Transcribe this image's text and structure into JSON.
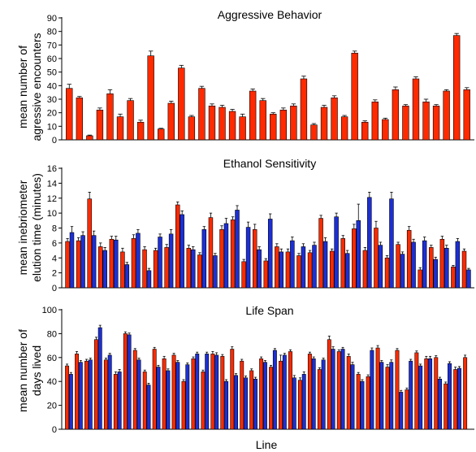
{
  "chart_data": [
    {
      "type": "bar",
      "title": "Aggressive Behavior",
      "ylabel": [
        "mean number of",
        "agressive encounters"
      ],
      "ylim": [
        0,
        90
      ],
      "yticks": [
        0,
        10,
        20,
        30,
        40,
        50,
        60,
        70,
        80,
        90
      ],
      "grid": false,
      "series": [
        {
          "color": "#ff2a00",
          "values": [
            38,
            31,
            3,
            22,
            34,
            17,
            29,
            13,
            62,
            8,
            27,
            53,
            17,
            38,
            25,
            24,
            21,
            17,
            36,
            29,
            19,
            22,
            25,
            45,
            11,
            24,
            31,
            17,
            64,
            13,
            28,
            15,
            37,
            25,
            45,
            28,
            25,
            36,
            77,
            37
          ],
          "errors": [
            3,
            1,
            0.5,
            1.5,
            3,
            2,
            1.5,
            1.5,
            3.5,
            0.5,
            1.5,
            2,
            1,
            1.5,
            1.5,
            1.5,
            1.5,
            2,
            1.5,
            1.5,
            1,
            1.5,
            1.5,
            2,
            1,
            1.5,
            1.5,
            1,
            1.5,
            1,
            1.5,
            1,
            2,
            1,
            1.5,
            2,
            1,
            1,
            1.5,
            1.5
          ]
        }
      ]
    },
    {
      "type": "bar",
      "title": "Ethanol Sensitivity",
      "ylabel": [
        "mean inebriometer",
        "elution time (minutes)"
      ],
      "ylim": [
        0,
        16
      ],
      "yticks": [
        0,
        2,
        4,
        6,
        8,
        10,
        12,
        14,
        16
      ],
      "grid": false,
      "series": [
        {
          "color": "#ff2a00",
          "values": [
            6.2,
            6.3,
            11.9,
            5.5,
            6.5,
            4.8,
            6.6,
            5.1,
            5.0,
            5.4,
            11.1,
            5.3,
            4.4,
            9.4,
            7.8,
            9.1,
            3.5,
            7.8,
            3.6,
            5.5,
            4.8,
            4.3,
            4.7,
            9.3,
            4.9,
            6.6,
            7.9,
            5.0,
            8.0,
            4.0,
            5.8,
            7.7,
            2.4,
            5.4,
            6.5,
            2.8,
            4.9
          ],
          "errors": [
            0.4,
            0.4,
            0.9,
            0.5,
            0.4,
            0.5,
            0.5,
            0.4,
            0.3,
            0.4,
            0.4,
            0.4,
            0.3,
            0.6,
            0.5,
            0.4,
            0.3,
            0.7,
            0.3,
            0.4,
            0.4,
            0.3,
            0.3,
            0.4,
            0.3,
            0.4,
            0.6,
            0.4,
            0.9,
            0.3,
            0.3,
            0.5,
            0.3,
            0.3,
            0.4,
            0.2,
            0.3
          ]
        },
        {
          "color": "#1c2fd6",
          "values": [
            7.4,
            7.0,
            7.0,
            5.0,
            6.4,
            3.1,
            7.3,
            2.3,
            6.8,
            7.2,
            9.8,
            5.1,
            7.8,
            4.3,
            8.6,
            10.4,
            8.1,
            5.1,
            9.2,
            4.8,
            6.3,
            5.5,
            5.7,
            6.2,
            9.5,
            4.6,
            9.0,
            12.1,
            5.7,
            11.9,
            4.5,
            6.1,
            6.3,
            3.8,
            5.3,
            6.2,
            2.4
          ],
          "errors": [
            0.8,
            0.5,
            0.6,
            0.4,
            0.5,
            0.3,
            0.5,
            0.3,
            0.4,
            0.6,
            0.5,
            0.4,
            0.4,
            0.3,
            0.7,
            0.6,
            0.7,
            0.4,
            0.7,
            0.4,
            0.5,
            0.4,
            0.4,
            0.5,
            0.5,
            0.4,
            2.2,
            0.7,
            0.4,
            0.9,
            0.3,
            0.4,
            0.5,
            0.3,
            0.4,
            0.4,
            0.2
          ]
        }
      ]
    },
    {
      "type": "bar",
      "title": "Life Span",
      "ylabel": [
        "mean number  of",
        "days lived"
      ],
      "ylim": [
        0,
        100
      ],
      "yticks": [
        0,
        20,
        40,
        60,
        80,
        100
      ],
      "grid": false,
      "xlabel": "Line",
      "series": [
        {
          "color": "#ff2a00",
          "values": [
            53,
            63,
            57,
            75,
            58,
            46,
            80,
            66,
            48,
            67,
            59,
            62,
            40,
            59,
            48,
            63,
            61,
            67,
            57,
            49,
            59,
            52,
            57,
            65,
            41,
            63,
            50,
            75,
            65,
            61,
            46,
            44,
            68,
            52,
            66,
            33,
            64,
            59,
            60,
            38,
            50,
            60
          ],
          "errors": [
            1.5,
            2,
            1.5,
            2,
            1.5,
            2,
            1.5,
            1.5,
            1.5,
            1.5,
            2,
            1.5,
            1.5,
            1.5,
            1.5,
            2,
            1.5,
            2,
            1.5,
            1.5,
            1.5,
            1.5,
            5,
            1.5,
            2,
            1.5,
            1.5,
            3,
            1.5,
            2,
            1.5,
            1.5,
            2,
            2,
            1.5,
            1.5,
            1.5,
            2,
            1.5,
            1.5,
            2,
            2
          ]
        },
        {
          "color": "#1c2fd6",
          "values": [
            46,
            56,
            58,
            85,
            62,
            48,
            79,
            58,
            37,
            52,
            49,
            56,
            54,
            63,
            63,
            62,
            40,
            45,
            43,
            42,
            56,
            66,
            62,
            43,
            46,
            59,
            58,
            67,
            67,
            54,
            40,
            66,
            56,
            56,
            31,
            57,
            53,
            59,
            42,
            55,
            51
          ],
          "errors": [
            1.5,
            1.5,
            1.5,
            2,
            1.5,
            2,
            1.5,
            1.5,
            1.5,
            1.5,
            1.5,
            1.5,
            1.5,
            1.5,
            1.5,
            2,
            1.5,
            1.5,
            1.5,
            1.5,
            1.5,
            1.5,
            1.5,
            2,
            2,
            1.5,
            1.5,
            2,
            1.5,
            2,
            1.5,
            2,
            1.5,
            2,
            1.5,
            1.5,
            1.5,
            2,
            1.5,
            1.5,
            1.5
          ]
        }
      ]
    }
  ]
}
